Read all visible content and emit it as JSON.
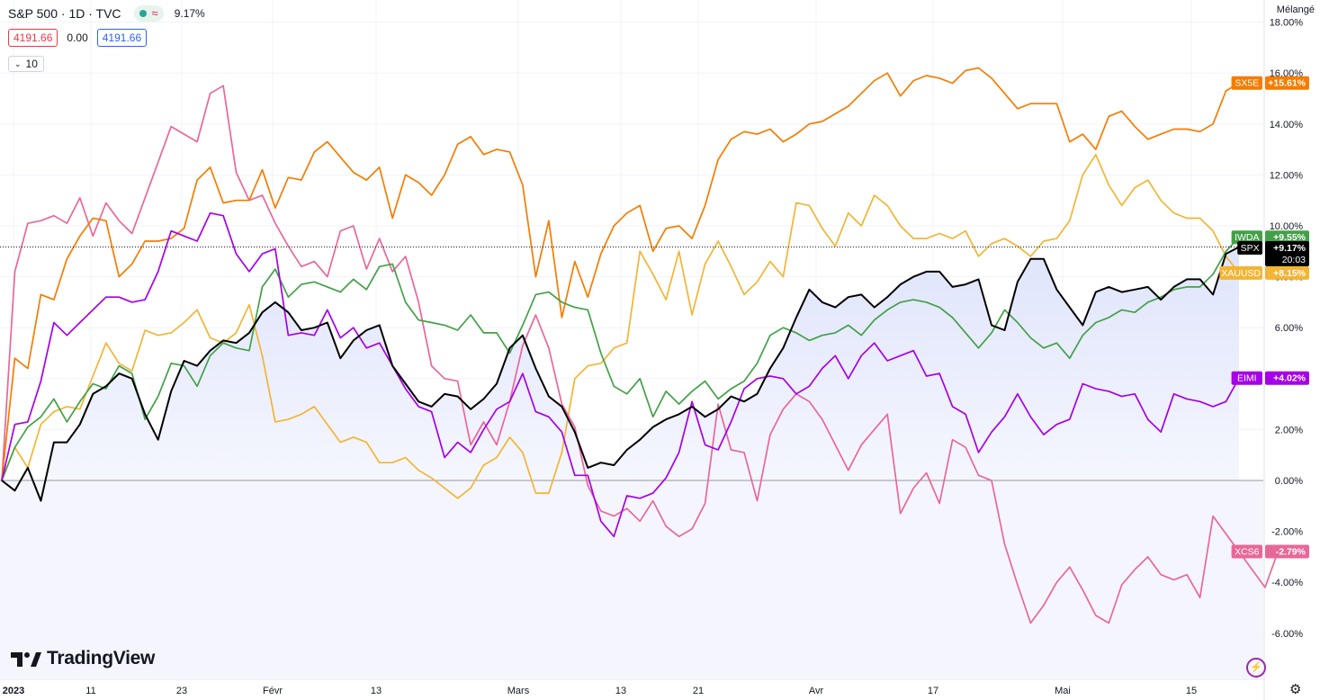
{
  "header": {
    "symbol": "S&P 500 · 1D · TVC",
    "change_pct": "9.17%",
    "price_bid": "4191.66",
    "spread": "0.00",
    "price_ask": "4191.66",
    "interval_toggle": "10",
    "scale_mode": "Mélangé"
  },
  "logo": {
    "text": "TradingView",
    "icon": "tradingview-logo-icon"
  },
  "colors": {
    "SX5E": "#f57c00",
    "XCS6": "#e8679a",
    "EIMI": "#a500e8",
    "IWDA": "#43a047",
    "XAUUSD": "#f2b534",
    "SPX": "#000000",
    "area_fill": "#dfe4fb"
  },
  "chart_data": {
    "type": "line",
    "title": "",
    "ylabel": "",
    "ylim": [
      -6.5,
      18.5
    ],
    "y_ticks": [
      "-6.00%",
      "-4.00%",
      "-2.00%",
      "0.00%",
      "2.00%",
      "4.00%",
      "6.00%",
      "8.00%",
      "10.00%",
      "12.00%",
      "14.00%",
      "16.00%",
      "18.00%"
    ],
    "x_ticks": [
      "2023",
      "11",
      "23",
      "Févr",
      "13",
      "Mars",
      "13",
      "21",
      "Avr",
      "17",
      "Mai",
      "15"
    ],
    "baseline": 0,
    "current_value_line": 9.17,
    "legend": "right-axis-labels",
    "series": [
      {
        "name": "SX5E",
        "label": "SX5E",
        "value_label": "+15.61%",
        "values": [
          0.0,
          4.8,
          4.4,
          7.3,
          7.1,
          8.7,
          9.6,
          10.3,
          10.2,
          8.0,
          8.5,
          9.4,
          9.4,
          9.5,
          9.9,
          11.8,
          12.3,
          10.9,
          11.0,
          11.0,
          12.2,
          10.7,
          11.9,
          11.8,
          12.9,
          13.3,
          12.7,
          12.1,
          11.8,
          12.3,
          10.3,
          12.0,
          11.7,
          11.2,
          12.0,
          13.2,
          13.5,
          12.8,
          13.0,
          12.9,
          11.6,
          8.0,
          10.2,
          6.4,
          8.6,
          7.2,
          8.9,
          10.0,
          10.5,
          10.8,
          9.0,
          9.9,
          10.0,
          9.5,
          10.8,
          12.6,
          13.4,
          13.7,
          13.6,
          13.8,
          13.3,
          13.6,
          14.0,
          14.1,
          14.4,
          14.7,
          15.2,
          15.7,
          16.0,
          15.1,
          15.7,
          15.9,
          15.8,
          15.6,
          16.1,
          16.2,
          15.8,
          15.2,
          14.6,
          14.8,
          14.8,
          14.8,
          13.3,
          13.6,
          13.0,
          14.3,
          14.5,
          13.9,
          13.4,
          13.6,
          13.8,
          13.8,
          13.7,
          14.0,
          15.3,
          15.61
        ]
      },
      {
        "name": "XCS6",
        "label": "XCS6",
        "value_label": "-2.79%",
        "values": [
          0.0,
          8.2,
          10.1,
          10.2,
          10.4,
          10.1,
          11.1,
          9.6,
          10.9,
          10.2,
          9.7,
          11.1,
          12.5,
          13.9,
          13.6,
          13.3,
          15.2,
          15.5,
          12.1,
          11.0,
          11.2,
          10.1,
          9.2,
          8.4,
          8.6,
          8.0,
          9.8,
          10.0,
          8.3,
          9.5,
          8.2,
          8.8,
          7.0,
          4.5,
          4.0,
          3.9,
          1.4,
          2.3,
          1.4,
          3.1,
          5.3,
          6.5,
          5.2,
          3.0,
          2.1,
          -0.2,
          -1.2,
          -1.4,
          -1.1,
          -1.6,
          -0.8,
          -1.8,
          -2.2,
          -1.9,
          -0.9,
          3.0,
          1.2,
          1.1,
          -0.8,
          1.8,
          2.8,
          3.4,
          3.1,
          2.4,
          1.4,
          0.4,
          1.4,
          2.0,
          2.6,
          -1.3,
          -0.3,
          0.3,
          -0.9,
          1.6,
          1.3,
          0.2,
          0.0,
          -2.5,
          -4.1,
          -5.6,
          -4.9,
          -4.0,
          -3.4,
          -4.3,
          -5.3,
          -5.6,
          -4.1,
          -3.5,
          -3.0,
          -3.7,
          -3.9,
          -3.7,
          -4.6,
          -1.4,
          -2.1,
          -2.8,
          -3.5,
          -4.2,
          -2.79
        ]
      },
      {
        "name": "EIMI",
        "label": "EIMI",
        "value_label": "+4.02%",
        "values": [
          0.0,
          2.2,
          2.3,
          3.9,
          6.2,
          5.7,
          6.2,
          6.7,
          7.2,
          7.2,
          7.0,
          7.1,
          8.2,
          9.8,
          9.6,
          9.4,
          10.5,
          10.4,
          8.9,
          8.2,
          8.9,
          9.1,
          5.7,
          5.8,
          5.7,
          6.7,
          5.6,
          6.0,
          5.2,
          5.4,
          4.5,
          3.6,
          2.9,
          2.7,
          0.9,
          1.5,
          1.1,
          2.0,
          2.8,
          3.1,
          4.2,
          2.7,
          2.5,
          1.9,
          0.2,
          0.2,
          -1.6,
          -2.2,
          -0.6,
          -0.7,
          -0.5,
          0.1,
          1.1,
          3.1,
          1.4,
          1.2,
          2.3,
          3.6,
          4.0,
          4.1,
          4.0,
          3.4,
          3.7,
          4.4,
          4.9,
          4.0,
          4.9,
          5.4,
          4.7,
          4.9,
          5.1,
          4.1,
          4.2,
          2.9,
          2.6,
          1.1,
          1.9,
          2.5,
          3.4,
          2.5,
          1.8,
          2.2,
          2.4,
          3.8,
          3.6,
          3.5,
          3.3,
          3.4,
          2.4,
          1.9,
          3.4,
          3.2,
          3.1,
          2.9,
          3.1,
          4.02
        ]
      },
      {
        "name": "IWDA",
        "label": "IWDA",
        "value_label": "+9.55%",
        "values": [
          0.0,
          1.3,
          2.1,
          2.5,
          3.2,
          2.3,
          3.1,
          3.8,
          3.6,
          4.5,
          4.2,
          2.4,
          3.3,
          4.6,
          4.5,
          3.7,
          4.9,
          5.4,
          5.2,
          5.1,
          7.6,
          8.3,
          7.2,
          7.7,
          7.8,
          7.6,
          7.4,
          7.9,
          7.5,
          8.4,
          8.5,
          7.0,
          6.3,
          6.2,
          6.1,
          5.9,
          6.5,
          5.8,
          5.8,
          5.0,
          6.1,
          7.3,
          7.4,
          7.0,
          6.8,
          6.7,
          5.0,
          3.7,
          3.4,
          4.0,
          2.5,
          3.5,
          3.0,
          3.5,
          3.9,
          3.2,
          3.6,
          3.9,
          4.6,
          5.7,
          6.0,
          5.8,
          5.5,
          5.7,
          5.8,
          6.1,
          5.7,
          6.3,
          6.7,
          7.0,
          7.1,
          7.0,
          6.8,
          6.4,
          5.8,
          5.2,
          5.8,
          6.7,
          6.2,
          5.6,
          5.2,
          5.4,
          4.8,
          5.7,
          6.2,
          6.4,
          6.7,
          6.6,
          7.0,
          7.2,
          7.5,
          7.6,
          7.6,
          8.1,
          9.0,
          9.55
        ]
      },
      {
        "name": "XAUUSD",
        "label": "XAUUSD",
        "value_label": "+8.15%",
        "values": [
          0.0,
          1.3,
          0.5,
          2.2,
          2.7,
          2.9,
          2.8,
          4.1,
          5.4,
          4.6,
          4.3,
          5.9,
          5.7,
          5.8,
          6.2,
          6.7,
          5.6,
          5.4,
          5.8,
          6.9,
          4.9,
          2.3,
          2.4,
          2.6,
          2.9,
          2.2,
          1.5,
          1.7,
          1.5,
          0.7,
          0.7,
          0.9,
          0.4,
          0.1,
          -0.3,
          -0.7,
          -0.3,
          0.6,
          0.9,
          1.7,
          1.1,
          -0.5,
          -0.5,
          1.1,
          4.0,
          4.5,
          4.6,
          5.2,
          5.4,
          9.0,
          8.1,
          7.1,
          9.0,
          6.5,
          8.5,
          9.4,
          8.4,
          7.3,
          7.8,
          8.6,
          8.0,
          10.9,
          10.8,
          9.9,
          9.2,
          10.5,
          10.0,
          11.2,
          10.8,
          10.0,
          9.5,
          9.5,
          9.7,
          9.5,
          9.8,
          8.8,
          9.3,
          9.5,
          9.2,
          8.8,
          9.4,
          9.5,
          10.2,
          12.0,
          12.8,
          11.6,
          10.8,
          11.5,
          11.8,
          11.0,
          10.5,
          10.3,
          10.3,
          9.8,
          8.8,
          8.15
        ]
      },
      {
        "name": "SPX",
        "label": "SPX",
        "value_label": "+9.17%",
        "time_label": "20:03",
        "values": [
          0.0,
          -0.4,
          0.5,
          -0.8,
          1.5,
          1.5,
          2.2,
          3.4,
          3.7,
          4.2,
          4.0,
          2.6,
          1.6,
          3.5,
          4.7,
          4.5,
          5.1,
          5.5,
          5.4,
          5.8,
          6.6,
          7.0,
          6.6,
          5.9,
          6.0,
          6.2,
          4.8,
          5.5,
          5.9,
          6.1,
          4.5,
          3.8,
          3.1,
          2.9,
          3.4,
          3.3,
          2.8,
          3.2,
          3.8,
          5.2,
          5.7,
          4.4,
          3.3,
          2.9,
          1.9,
          0.5,
          0.7,
          0.6,
          1.2,
          1.6,
          2.1,
          2.4,
          2.6,
          2.9,
          2.5,
          2.8,
          3.3,
          3.1,
          3.4,
          4.4,
          5.2,
          6.4,
          7.5,
          7.0,
          6.8,
          7.2,
          7.3,
          6.8,
          7.2,
          7.7,
          8.0,
          8.2,
          8.2,
          7.6,
          7.7,
          7.9,
          6.1,
          5.9,
          7.8,
          8.7,
          8.7,
          7.5,
          6.8,
          6.1,
          7.4,
          7.6,
          7.4,
          7.5,
          7.6,
          7.1,
          7.6,
          7.9,
          7.9,
          7.3,
          8.9,
          9.17
        ]
      }
    ]
  }
}
